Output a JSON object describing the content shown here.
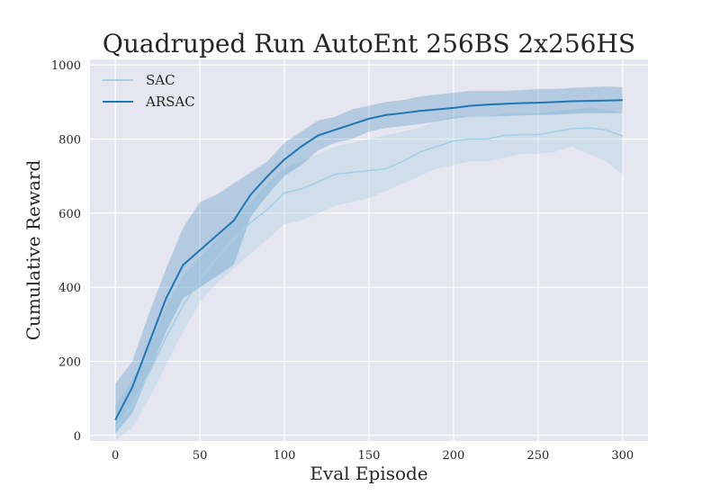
{
  "chart_data": {
    "type": "line",
    "title": "Quadruped Run AutoEnt 256BS 2x256HS",
    "xlabel": "Eval Episode",
    "ylabel": "Cumulative Reward",
    "xlim": [
      -15,
      315
    ],
    "ylim": [
      -15,
      1015
    ],
    "xticks": [
      0,
      50,
      100,
      150,
      200,
      250,
      300
    ],
    "yticks": [
      0,
      200,
      400,
      600,
      800,
      1000
    ],
    "grid": true,
    "legend_position": "top-left",
    "background_color": "#e5e6ef",
    "series": [
      {
        "name": "SAC",
        "color": "#a6cee3",
        "x": [
          0,
          10,
          20,
          30,
          40,
          50,
          60,
          70,
          80,
          90,
          100,
          110,
          120,
          130,
          140,
          150,
          160,
          170,
          180,
          190,
          200,
          210,
          220,
          230,
          240,
          250,
          260,
          270,
          280,
          290,
          300
        ],
        "mean": [
          18,
          80,
          170,
          265,
          350,
          420,
          480,
          530,
          575,
          610,
          655,
          665,
          685,
          705,
          710,
          715,
          720,
          740,
          765,
          780,
          795,
          800,
          800,
          810,
          812,
          812,
          820,
          828,
          830,
          825,
          808
        ],
        "lower": [
          -15,
          20,
          100,
          190,
          280,
          360,
          410,
          450,
          490,
          530,
          570,
          580,
          600,
          620,
          630,
          640,
          660,
          680,
          700,
          720,
          730,
          740,
          740,
          750,
          760,
          760,
          765,
          780,
          760,
          740,
          705
        ],
        "upper": [
          80,
          150,
          240,
          350,
          430,
          480,
          530,
          580,
          630,
          680,
          720,
          740,
          760,
          780,
          790,
          800,
          810,
          820,
          830,
          850,
          860,
          860,
          860,
          870,
          870,
          870,
          875,
          880,
          885,
          880,
          870
        ]
      },
      {
        "name": "ARSAC",
        "color": "#1f77b4",
        "x": [
          0,
          10,
          20,
          30,
          40,
          50,
          60,
          70,
          80,
          90,
          100,
          110,
          120,
          130,
          140,
          150,
          160,
          170,
          180,
          190,
          200,
          210,
          220,
          230,
          240,
          250,
          260,
          270,
          280,
          290,
          300
        ],
        "mean": [
          42,
          130,
          250,
          370,
          460,
          500,
          540,
          580,
          650,
          700,
          745,
          780,
          810,
          825,
          840,
          855,
          865,
          870,
          876,
          880,
          884,
          890,
          893,
          895,
          897,
          898,
          900,
          902,
          903,
          904,
          905
        ],
        "lower": [
          5,
          60,
          170,
          280,
          370,
          400,
          430,
          460,
          590,
          650,
          700,
          730,
          770,
          790,
          800,
          820,
          830,
          835,
          840,
          848,
          855,
          860,
          860,
          862,
          864,
          865,
          866,
          868,
          870,
          870,
          870
        ],
        "upper": [
          140,
          200,
          330,
          450,
          560,
          630,
          650,
          680,
          710,
          740,
          790,
          820,
          850,
          860,
          880,
          890,
          900,
          905,
          915,
          920,
          925,
          930,
          930,
          930,
          932,
          935,
          935,
          938,
          940,
          942,
          940
        ]
      }
    ]
  }
}
